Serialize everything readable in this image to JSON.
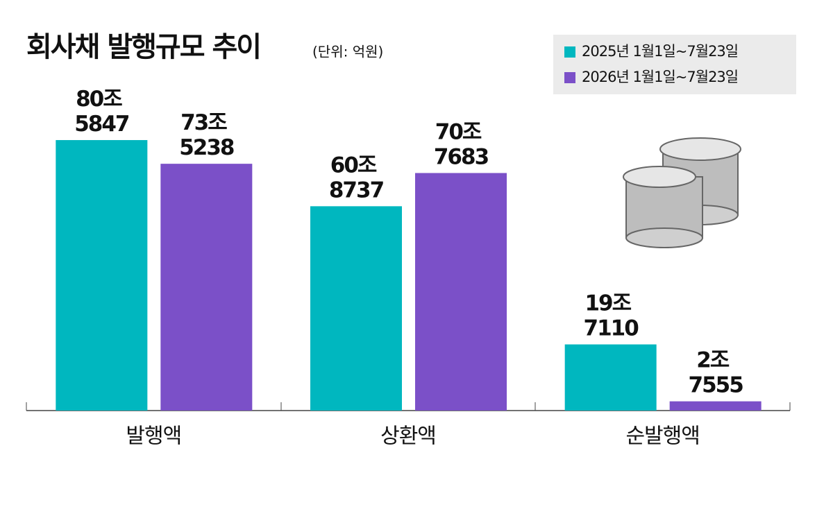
{
  "chart_data": {
    "type": "bar",
    "title": "회사채 발행규모 추이",
    "subtitle": "(단위: 억원)",
    "categories": [
      "발행액",
      "상환액",
      "순발행액"
    ],
    "series": [
      {
        "name": "2025년 1월1일~7월23일",
        "color": "#00b7bf",
        "values": [
          805847,
          608737,
          197110
        ],
        "value_labels": [
          "80조 5847",
          "60조 8737",
          "19조 7110"
        ]
      },
      {
        "name": "2026년 1월1일~7월23일",
        "color": "#7b50c8",
        "values": [
          735238,
          707683,
          27555
        ],
        "value_labels": [
          "73조 5238",
          "70조 7683",
          "2조 7555"
        ]
      }
    ],
    "ylim": [
      0,
      1000000
    ],
    "legend": "top-right"
  }
}
